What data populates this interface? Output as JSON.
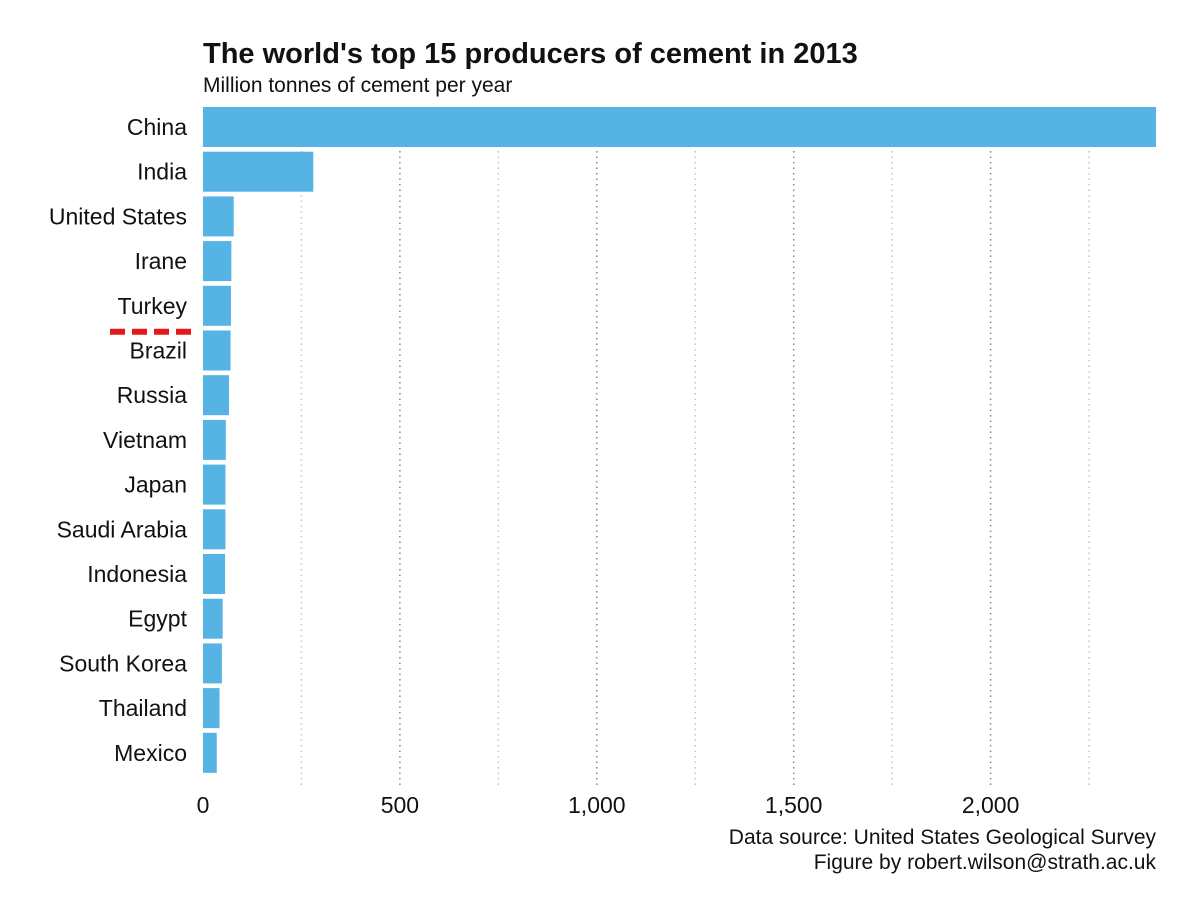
{
  "chart_data": {
    "type": "bar",
    "orientation": "horizontal",
    "title": "The world's top 15 producers of cement in 2013",
    "subtitle": "Million tonnes of cement per year",
    "categories": [
      "China",
      "India",
      "United States",
      "Irane",
      "Turkey",
      "Brazil",
      "Russia",
      "Vietnam",
      "Japan",
      "Saudi Arabia",
      "Indonesia",
      "Egypt",
      "South Korea",
      "Thailand",
      "Mexico"
    ],
    "values": [
      2420,
      280,
      78,
      72,
      71,
      70,
      66,
      58,
      57,
      57,
      56,
      50,
      48,
      42,
      35
    ],
    "x_ticks": [
      0,
      500,
      1000,
      1500,
      2000
    ],
    "x_tick_labels": [
      "0",
      "500",
      "1,000",
      "1,500",
      "2,000"
    ],
    "xlim": [
      0,
      2420
    ],
    "grid": "vertical dotted",
    "highlight": "Turkey",
    "bar_color": "#56b4e5",
    "highlight_color": "#e31a1c",
    "caption_source": "Data source: United States Geological Survey",
    "caption_author": "Figure by robert.wilson@strath.ac.uk"
  }
}
